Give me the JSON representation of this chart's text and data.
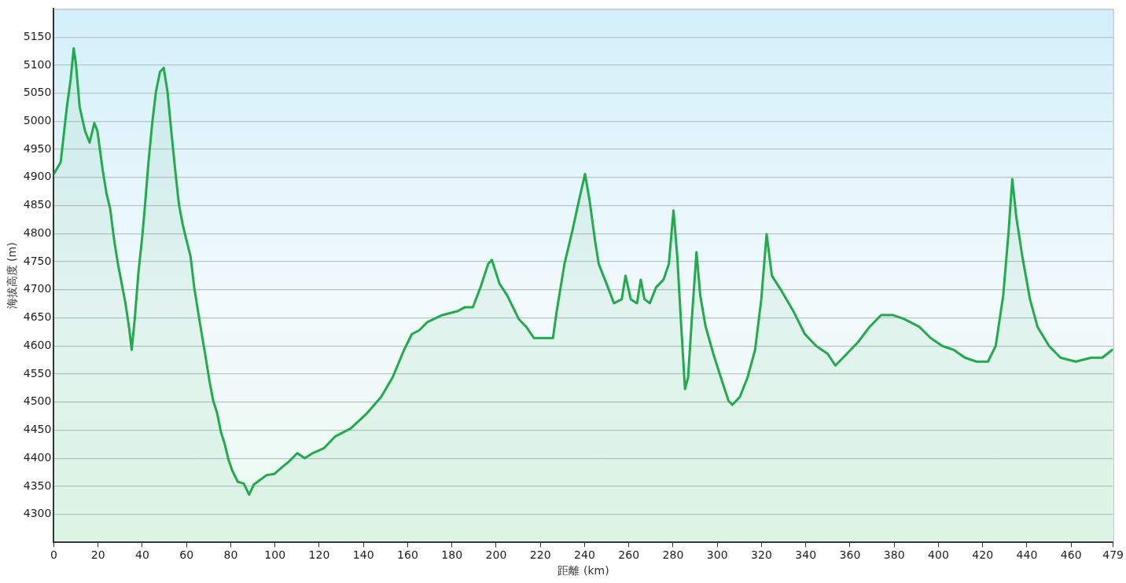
{
  "chart_data": {
    "type": "area",
    "xlabel": "距離 (km)",
    "ylabel": "海拔高度 (m)",
    "xlim": [
      0,
      479
    ],
    "xticks": [
      0,
      20,
      40,
      60,
      80,
      100,
      120,
      140,
      160,
      180,
      200,
      220,
      240,
      260,
      280,
      300,
      320,
      340,
      360,
      380,
      400,
      420,
      440,
      460,
      479
    ],
    "ylim": [
      4250,
      5200
    ],
    "yticks": [
      4300,
      4350,
      4400,
      4450,
      4500,
      4550,
      4600,
      4650,
      4700,
      4750,
      4800,
      4850,
      4900,
      4950,
      5000,
      5050,
      5100,
      5150
    ],
    "grid": "y",
    "legend": false,
    "marker": "none",
    "line_style": "solid",
    "series": [
      {
        "color": "#22aa4c",
        "x": [
          0,
          3.1,
          5.9,
          7.6,
          9.0,
          10.0,
          11.7,
          14.1,
          16.2,
          18.3,
          19.7,
          22.1,
          23.8,
          25.5,
          27.3,
          29.0,
          30.7,
          32.4,
          34.2,
          35.2,
          36.6,
          38.3,
          40.0,
          41.1,
          42.8,
          44.5,
          46.2,
          48.0,
          49.7,
          51.4,
          53.1,
          54.9,
          56.6,
          58.3,
          60.0,
          61.8,
          63.5,
          65.2,
          66.9,
          68.7,
          70.4,
          72.1,
          73.8,
          75.6,
          77.3,
          79.0,
          80.8,
          83.2,
          85.9,
          88.3,
          90.4,
          92.8,
          96.3,
          99.7,
          103.2,
          106.6,
          110.1,
          113.5,
          117.0,
          122.2,
          127.3,
          134.2,
          141.1,
          148.0,
          153.2,
          158.4,
          161.9,
          165.3,
          168.8,
          175.7,
          182.6,
          186.0,
          189.5,
          192.9,
          196.4,
          198.1,
          201.5,
          205.0,
          210.2,
          213.6,
          217.1,
          222.2,
          225.7,
          227.4,
          230.9,
          234.3,
          237.8,
          240.2,
          242.3,
          244.7,
          246.4,
          249.9,
          253.3,
          256.8,
          258.5,
          260.9,
          263.7,
          265.4,
          267.1,
          269.5,
          272.3,
          275.7,
          278.1,
          280.2,
          281.9,
          283.7,
          285.4,
          286.8,
          288.5,
          290.6,
          292.3,
          294.7,
          298.2,
          301.6,
          305.1,
          306.8,
          310.2,
          313.7,
          317.1,
          319.9,
          322.3,
          324.7,
          329.2,
          334.4,
          339.6,
          344.7,
          349.9,
          353.4,
          358.6,
          363.7,
          368.9,
          374.1,
          379.3,
          384.4,
          391.3,
          396.5,
          401.7,
          406.9,
          412.0,
          417.2,
          422.4,
          425.9,
          429.3,
          431.7,
          433.4,
          435.2,
          437.9,
          441.4,
          444.8,
          450.0,
          455.2,
          462.1,
          469.0,
          474.1,
          478.6
        ],
        "values": [
          4906,
          4927,
          5025,
          5074,
          5130,
          5102,
          5025,
          4983,
          4962,
          4997,
          4983,
          4913,
          4872,
          4844,
          4788,
          4746,
          4711,
          4676,
          4628,
          4593,
          4648,
          4732,
          4795,
          4844,
          4927,
          4997,
          5053,
          5088,
          5095,
          5053,
          4983,
          4913,
          4851,
          4816,
          4788,
          4760,
          4704,
          4662,
          4621,
          4579,
          4537,
          4502,
          4481,
          4446,
          4425,
          4397,
          4377,
          4358,
          4355,
          4335,
          4353,
          4360,
          4370,
          4372,
          4384,
          4395,
          4409,
          4400,
          4409,
          4418,
          4439,
          4453,
          4478,
          4509,
          4544,
          4593,
          4621,
          4628,
          4642,
          4655,
          4662,
          4669,
          4669,
          4704,
          4746,
          4753,
          4711,
          4690,
          4648,
          4634,
          4614,
          4614,
          4614,
          4662,
          4746,
          4802,
          4865,
          4906,
          4858,
          4788,
          4746,
          4711,
          4676,
          4683,
          4725,
          4683,
          4676,
          4718,
          4683,
          4676,
          4704,
          4718,
          4746,
          4841,
          4760,
          4635,
          4523,
          4544,
          4648,
          4767,
          4690,
          4635,
          4586,
          4544,
          4502,
          4495,
          4509,
          4544,
          4593,
          4683,
          4799,
          4725,
          4697,
          4662,
          4621,
          4600,
          4586,
          4565,
          4586,
          4607,
          4634,
          4655,
          4655,
          4648,
          4634,
          4614,
          4600,
          4593,
          4579,
          4572,
          4572,
          4600,
          4690,
          4802,
          4897,
          4830,
          4760,
          4683,
          4634,
          4600,
          4579,
          4572,
          4579,
          4579,
          4593
        ]
      }
    ]
  }
}
